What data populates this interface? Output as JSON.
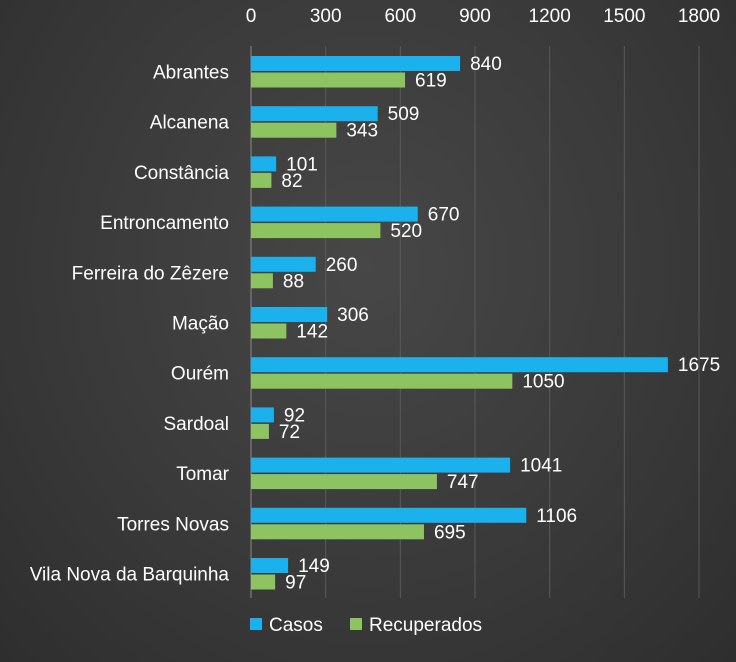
{
  "chart_data": {
    "type": "bar",
    "orientation": "horizontal",
    "categories": [
      "Abrantes",
      "Alcanena",
      "Constância",
      "Entroncamento",
      "Ferreira do Zêzere",
      "Mação",
      "Ourém",
      "Sardoal",
      "Tomar",
      "Torres Novas",
      "Vila Nova da Barquinha"
    ],
    "series": [
      {
        "name": "Casos",
        "color": "#1ab1ec",
        "values": [
          840,
          509,
          101,
          670,
          260,
          306,
          1675,
          92,
          1041,
          1106,
          149
        ]
      },
      {
        "name": "Recuperados",
        "color": "#8dc461",
        "values": [
          619,
          343,
          82,
          520,
          88,
          142,
          1050,
          72,
          747,
          695,
          97
        ]
      }
    ],
    "xticks": [
      "0",
      "300",
      "600",
      "900",
      "1200",
      "1500",
      "1800"
    ],
    "xlim": [
      0,
      1800
    ],
    "axis_position": "top",
    "grid": true,
    "legend_position": "bottom"
  }
}
